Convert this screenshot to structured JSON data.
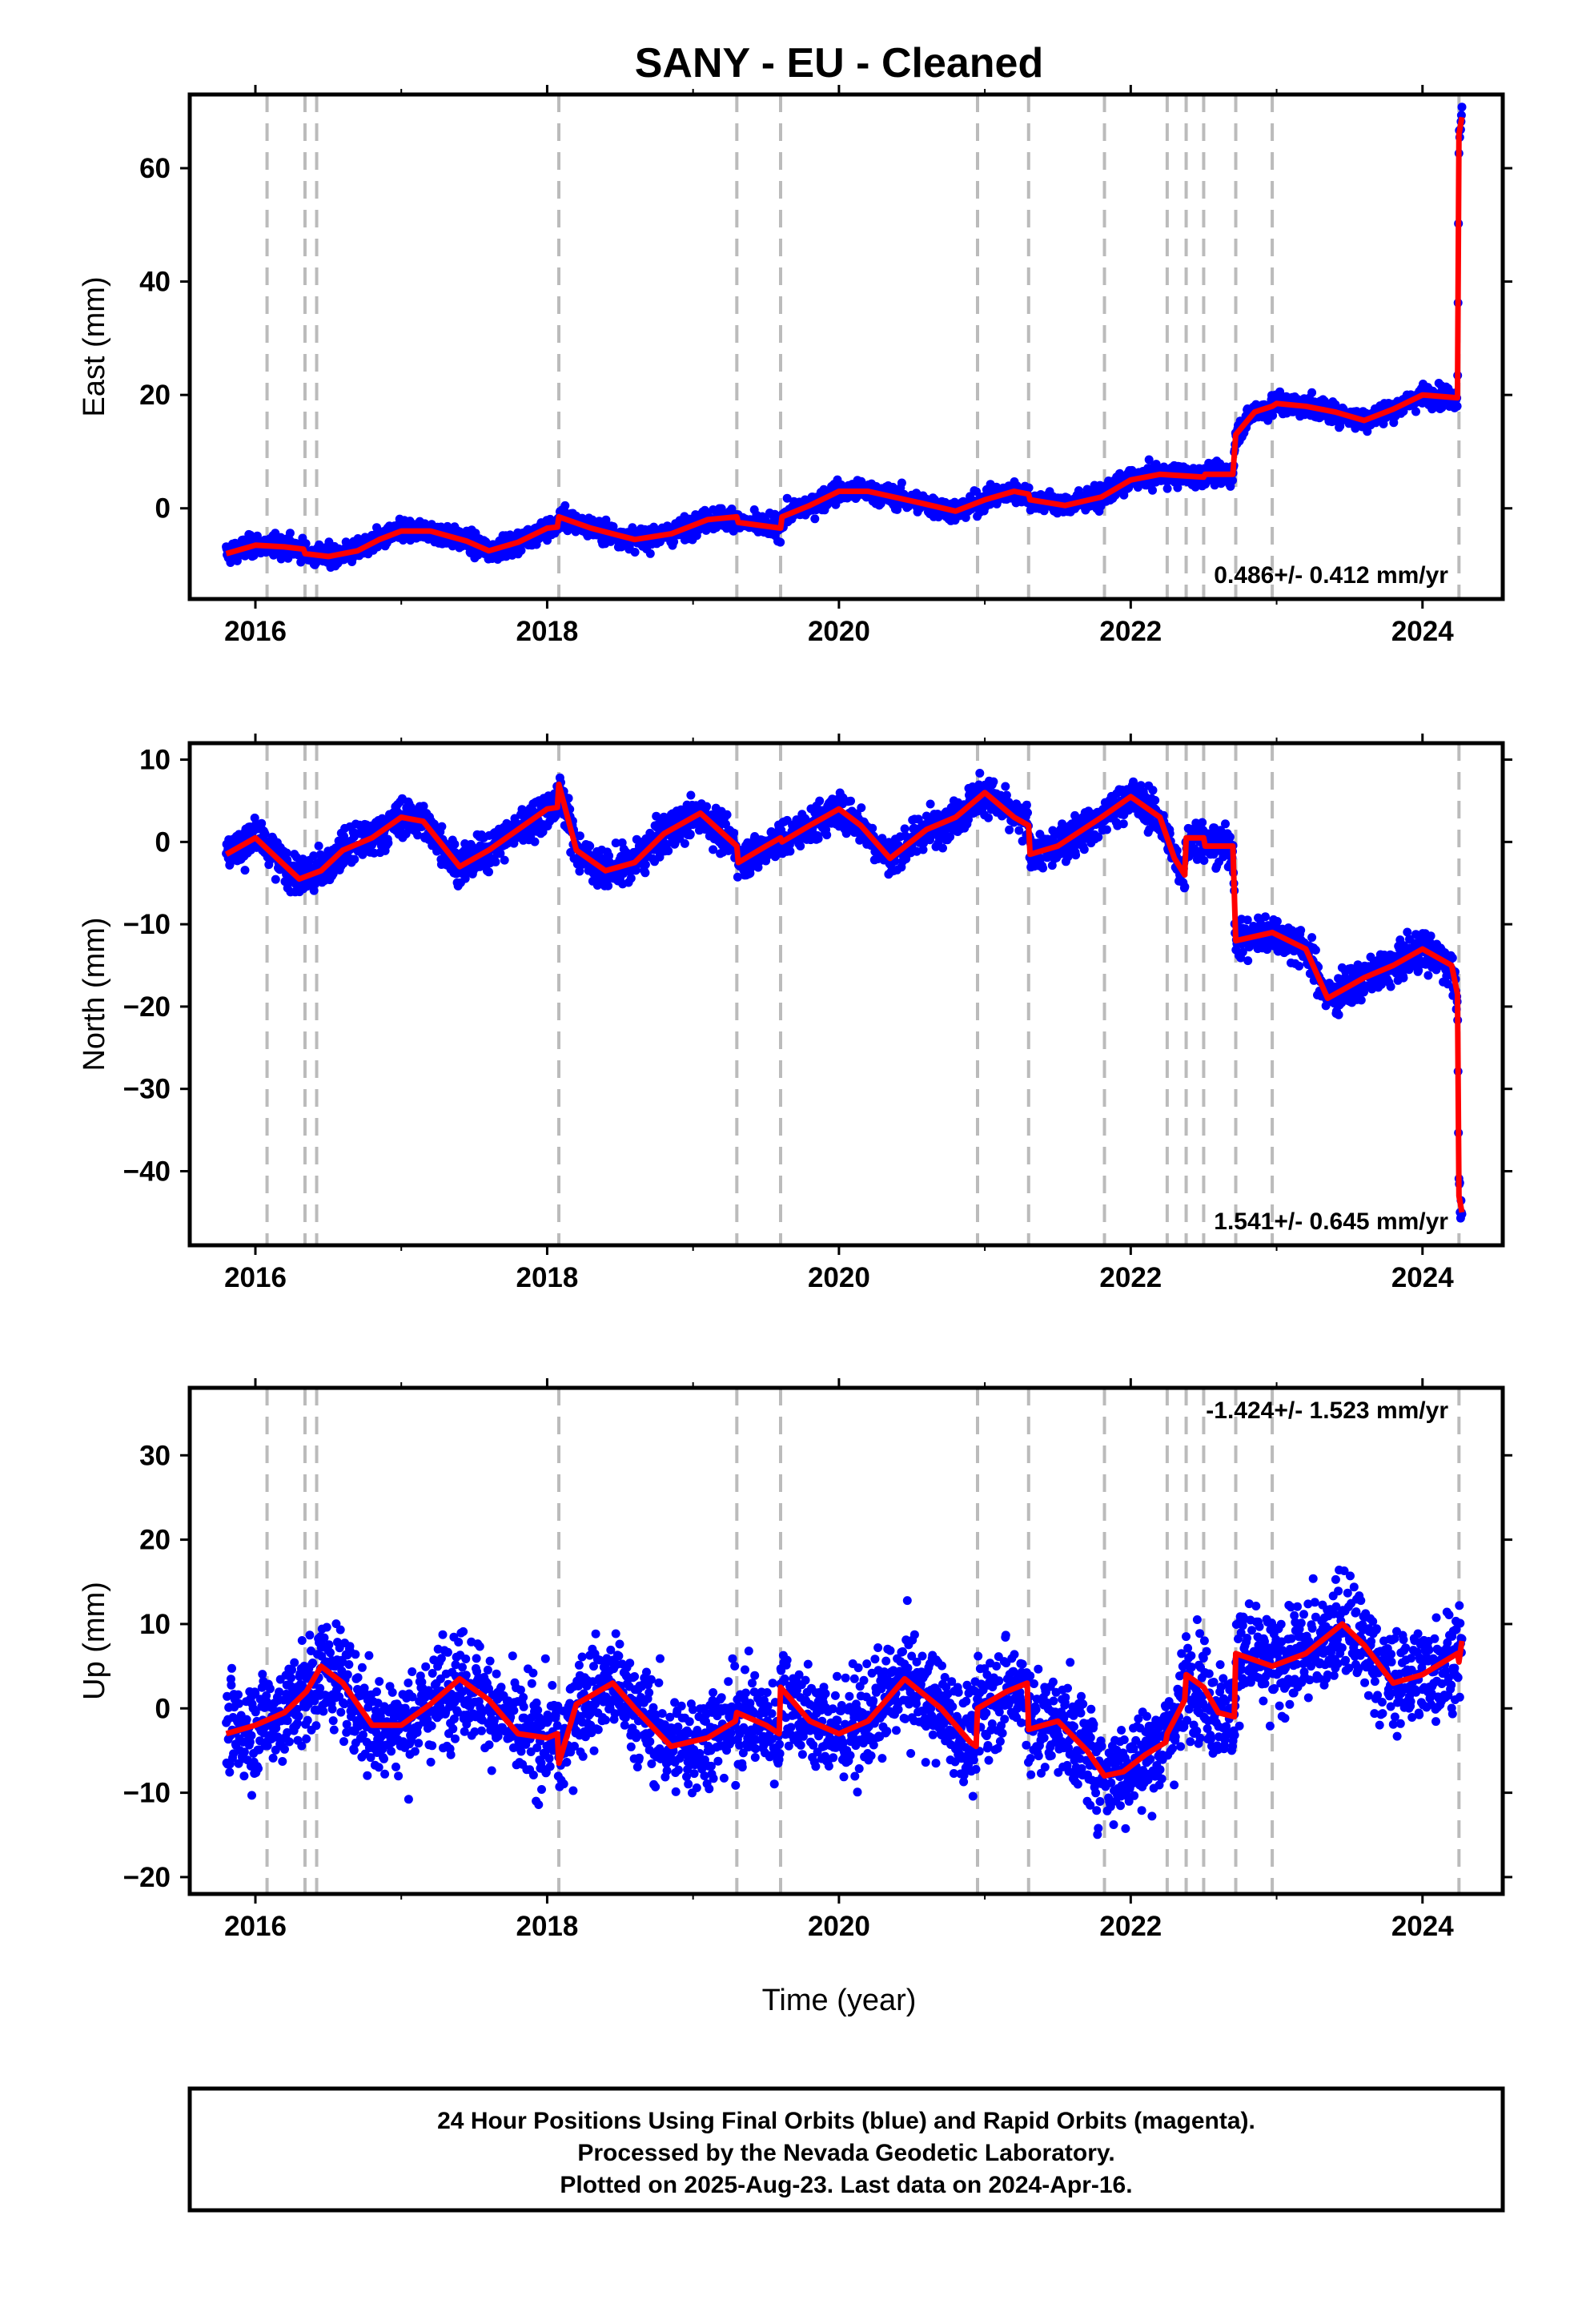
{
  "title": "SANY  - EU - Cleaned",
  "x_axis_label": "Time (year)",
  "footer_lines": [
    "24 Hour Positions Using Final Orbits (blue) and Rapid Orbits (magenta).",
    "Processed by the Nevada Geodetic Laboratory.",
    "Plotted on 2025-Aug-23. Last data on 2024-Apr-16."
  ],
  "colors": {
    "points": "#0000ff",
    "model": "#ff0000",
    "event_lines": "#bbbbbb",
    "frame": "#000000"
  },
  "chart_data": [
    {
      "type": "scatter",
      "ylabel": "East (mm)",
      "rate_label": "0.486+/- 0.412 mm/yr",
      "rate_position": "bottom-right",
      "xlim": [
        2015.55,
        2024.55
      ],
      "ylim": [
        -16,
        73
      ],
      "x_ticks": [
        2016,
        2018,
        2020,
        2022,
        2024
      ],
      "y_ticks": [
        0,
        20,
        40,
        60
      ],
      "event_lines": [
        2016.08,
        2016.34,
        2016.42,
        2018.08,
        2019.3,
        2019.6,
        2020.95,
        2021.3,
        2021.82,
        2022.25,
        2022.38,
        2022.5,
        2022.72,
        2022.97,
        2024.25
      ],
      "series": [
        {
          "x": [
            2015.8,
            2016.0,
            2016.2,
            2016.33,
            2016.34,
            2016.5,
            2016.7,
            2016.85,
            2017.0,
            2017.2,
            2017.45,
            2017.6,
            2017.8,
            2018.0,
            2018.07,
            2018.08,
            2018.3,
            2018.6,
            2018.85,
            2019.1,
            2019.3,
            2019.31,
            2019.6,
            2019.61,
            2019.8,
            2020.0,
            2020.2,
            2020.55,
            2020.8,
            2021.0,
            2021.2,
            2021.3,
            2021.31,
            2021.55,
            2021.8,
            2022.0,
            2022.2,
            2022.5,
            2022.51,
            2022.7,
            2022.72,
            2022.85,
            2022.97,
            2023.0,
            2023.2,
            2023.4,
            2023.6,
            2023.8,
            2024.0,
            2024.24,
            2024.25,
            2024.27
          ],
          "y": [
            -8,
            -6.5,
            -6.8,
            -7.2,
            -8,
            -8.5,
            -7.5,
            -5.5,
            -4,
            -4,
            -5.8,
            -7.5,
            -6,
            -3.5,
            -3.3,
            -1.5,
            -3.5,
            -5.5,
            -4.5,
            -2,
            -1.5,
            -2.5,
            -3.5,
            -1.5,
            0.5,
            3,
            3,
            1,
            -0.5,
            1.5,
            3,
            2.5,
            1.5,
            0.5,
            2,
            5,
            6,
            5.5,
            6,
            6,
            13,
            17,
            18,
            18.5,
            18,
            17,
            15.5,
            17.5,
            20,
            19.5,
            66,
            69
          ]
        }
      ]
    },
    {
      "type": "scatter",
      "ylabel": "North (mm)",
      "rate_label": "1.541+/- 0.645 mm/yr",
      "rate_position": "bottom-right",
      "xlim": [
        2015.55,
        2024.55
      ],
      "ylim": [
        -49,
        12
      ],
      "x_ticks": [
        2016,
        2018,
        2020,
        2022,
        2024
      ],
      "y_ticks": [
        10,
        0,
        -10,
        -20,
        -30,
        -40
      ],
      "event_lines": [
        2016.08,
        2016.34,
        2016.42,
        2018.08,
        2019.3,
        2019.6,
        2020.95,
        2021.3,
        2021.82,
        2022.25,
        2022.38,
        2022.5,
        2022.72,
        2022.97,
        2024.25
      ],
      "series": [
        {
          "x": [
            2015.8,
            2016.0,
            2016.15,
            2016.3,
            2016.45,
            2016.6,
            2016.8,
            2017.0,
            2017.15,
            2017.4,
            2017.6,
            2017.8,
            2018.0,
            2018.07,
            2018.08,
            2018.2,
            2018.4,
            2018.6,
            2018.8,
            2019.05,
            2019.3,
            2019.31,
            2019.5,
            2019.6,
            2019.61,
            2019.8,
            2020.0,
            2020.15,
            2020.35,
            2020.6,
            2020.8,
            2021.0,
            2021.2,
            2021.3,
            2021.31,
            2021.5,
            2021.8,
            2022.0,
            2022.2,
            2022.3,
            2022.37,
            2022.38,
            2022.5,
            2022.51,
            2022.7,
            2022.72,
            2022.97,
            2023.2,
            2023.35,
            2023.6,
            2023.8,
            2024.0,
            2024.2,
            2024.24,
            2024.25,
            2024.27
          ],
          "y": [
            -1.5,
            0.5,
            -2,
            -4.5,
            -3.5,
            -1,
            0.5,
            3,
            2.5,
            -3,
            -1,
            1.5,
            4,
            4.2,
            7,
            -1,
            -3.5,
            -2.5,
            1,
            3.5,
            -0.5,
            -2.5,
            -0.5,
            0.5,
            0,
            2,
            4,
            2,
            -2,
            1.5,
            3,
            6,
            3,
            2,
            -1.5,
            -0.5,
            3,
            5.5,
            3,
            -2,
            -4,
            0.5,
            0.5,
            -0.5,
            -0.5,
            -12,
            -11,
            -13,
            -19,
            -16.5,
            -15,
            -13,
            -15,
            -18.5,
            -43,
            -45
          ]
        }
      ]
    },
    {
      "type": "scatter",
      "ylabel": "Up (mm)",
      "rate_label": "-1.424+/- 1.523 mm/yr",
      "rate_position": "top-right",
      "xlim": [
        2015.55,
        2024.55
      ],
      "ylim": [
        -22,
        38
      ],
      "x_ticks": [
        2016,
        2018,
        2020,
        2022,
        2024
      ],
      "y_ticks": [
        30,
        20,
        10,
        0,
        -10,
        -20
      ],
      "event_lines": [
        2016.08,
        2016.34,
        2016.42,
        2018.08,
        2019.3,
        2019.6,
        2020.95,
        2021.3,
        2021.82,
        2022.25,
        2022.38,
        2022.5,
        2022.72,
        2022.97,
        2024.25
      ],
      "series": [
        {
          "x": [
            2015.8,
            2016.0,
            2016.2,
            2016.35,
            2016.45,
            2016.6,
            2016.8,
            2017.0,
            2017.2,
            2017.4,
            2017.6,
            2017.8,
            2018.0,
            2018.07,
            2018.08,
            2018.2,
            2018.45,
            2018.6,
            2018.85,
            2019.1,
            2019.29,
            2019.3,
            2019.5,
            2019.59,
            2019.6,
            2019.8,
            2020.0,
            2020.2,
            2020.45,
            2020.7,
            2020.9,
            2020.94,
            2020.95,
            2021.15,
            2021.29,
            2021.3,
            2021.5,
            2021.7,
            2021.82,
            2021.95,
            2022.1,
            2022.24,
            2022.25,
            2022.37,
            2022.38,
            2022.5,
            2022.6,
            2022.71,
            2022.72,
            2022.97,
            2023.2,
            2023.45,
            2023.6,
            2023.8,
            2024.0,
            2024.24,
            2024.25,
            2024.27
          ],
          "y": [
            -3,
            -2,
            -0.5,
            2,
            5,
            3,
            -2,
            -2,
            0.5,
            3.5,
            1,
            -3,
            -3.5,
            -3,
            -6.5,
            0.5,
            3,
            0,
            -4.5,
            -3.5,
            -1.5,
            -0.5,
            -2,
            -3,
            2.5,
            -1.5,
            -3,
            -1.5,
            3.5,
            0,
            -4,
            -4.5,
            0,
            2,
            3,
            -2.5,
            -1.5,
            -5,
            -8,
            -7.5,
            -5.5,
            -4,
            -3,
            1,
            4,
            2.5,
            -0.5,
            -1,
            6.5,
            5,
            6.5,
            10,
            7.5,
            3,
            4,
            6.5,
            5.5,
            8
          ]
        }
      ]
    }
  ]
}
